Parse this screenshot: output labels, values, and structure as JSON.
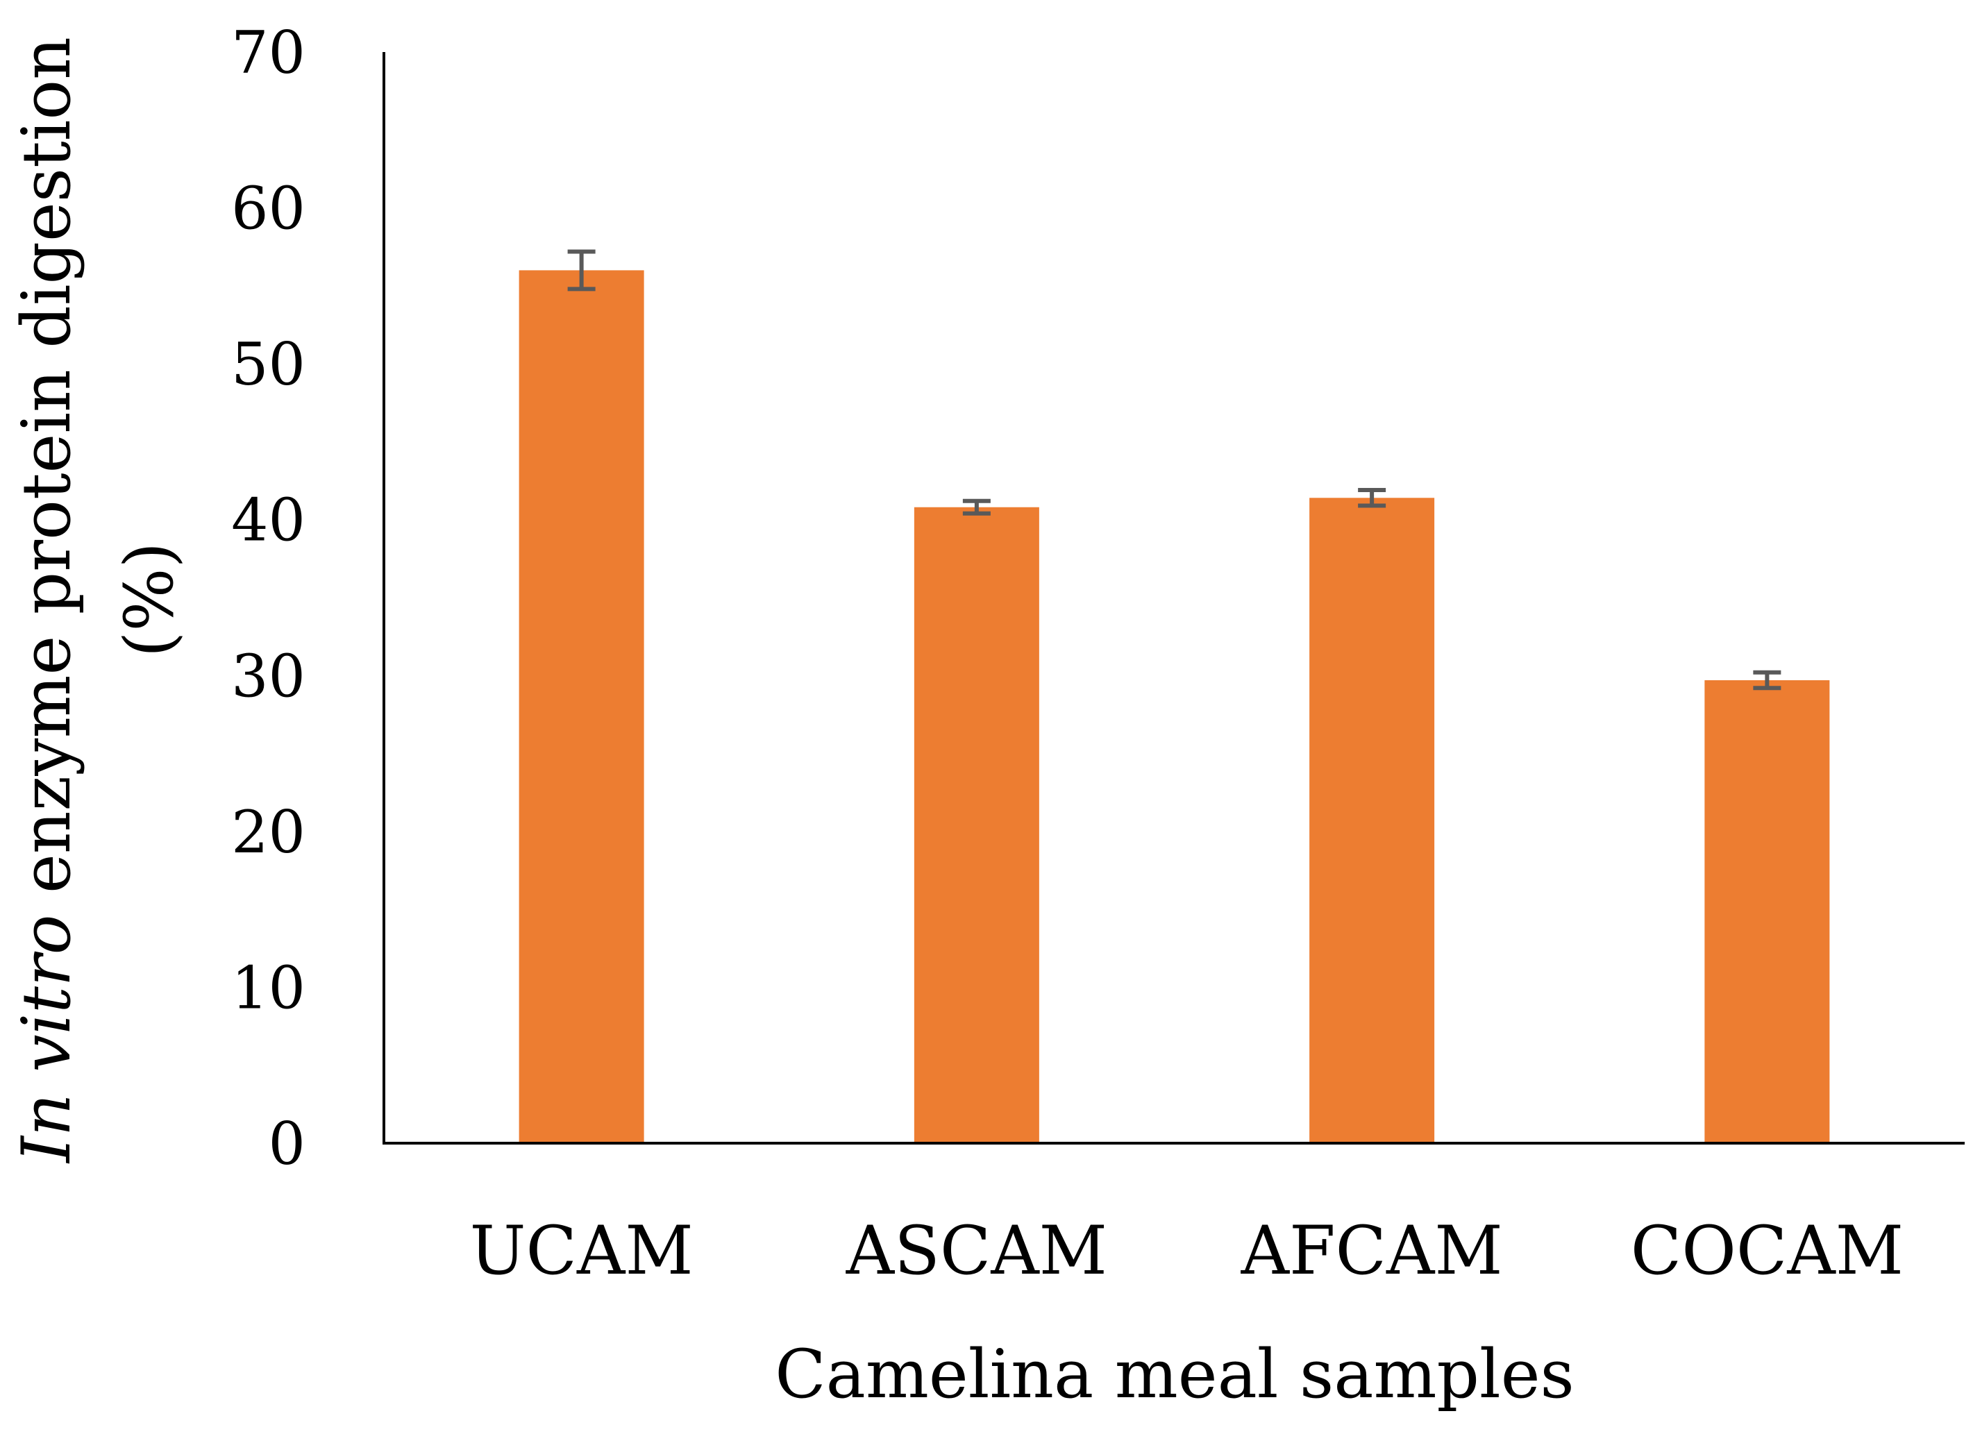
{
  "chart_data": {
    "type": "bar",
    "title": "",
    "categories": [
      "UCAM",
      "ASCAM",
      "AFCAM",
      "COCAM"
    ],
    "values": [
      56.0,
      40.8,
      41.4,
      29.7
    ],
    "error": [
      1.2,
      0.4,
      0.5,
      0.5
    ],
    "xlabel": "Camelina meal samples",
    "ylabel_italic": "In vitro",
    "ylabel_rest": " enzyme protein digestion",
    "ylabel_line2": "(%)",
    "ylim": [
      0,
      70
    ],
    "yticks": [
      "0",
      "10",
      "20",
      "30",
      "40",
      "50",
      "60",
      "70"
    ],
    "ytick_values": [
      0,
      10,
      20,
      30,
      40,
      50,
      60,
      70
    ],
    "grid": false,
    "legend": "none",
    "colors": {
      "bar": "#ED7D31",
      "error_bar": "#595959",
      "axis": "#000000"
    }
  }
}
